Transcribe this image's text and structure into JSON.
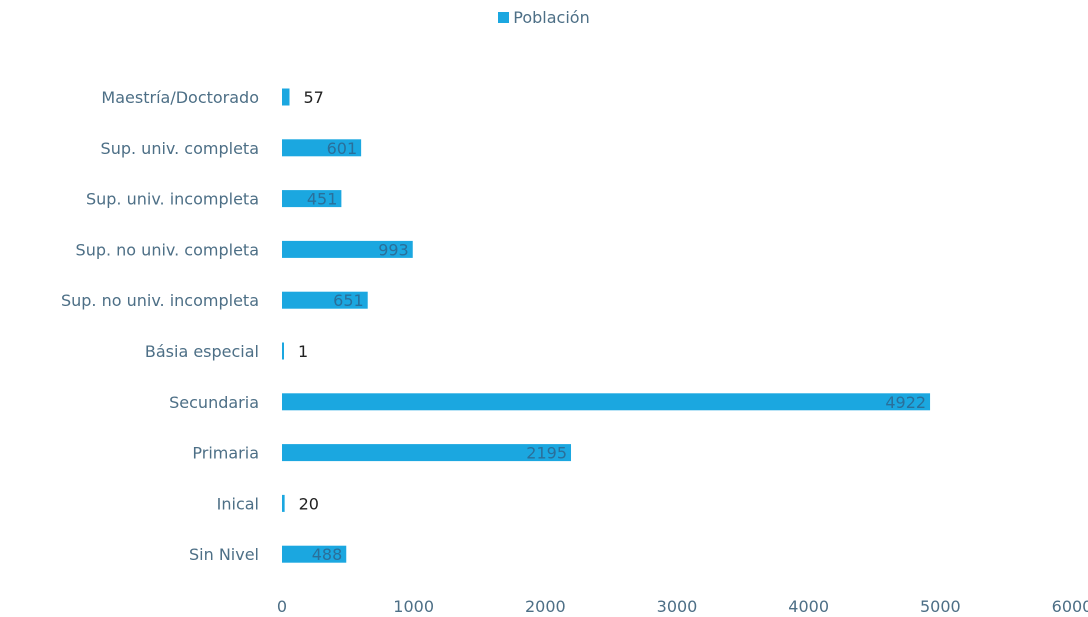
{
  "chart_data": {
    "type": "bar",
    "orientation": "horizontal",
    "title": "",
    "xlabel": "",
    "ylabel": "",
    "categories": [
      "Maestría/Doctorado",
      "Sup. univ. completa",
      "Sup. univ. incompleta",
      "Sup. no univ. completa",
      "Sup. no univ. incompleta",
      "Básia especial",
      "Secundaria",
      "Primaria",
      "Inical",
      "Sin Nivel"
    ],
    "series": [
      {
        "name": "Población",
        "color": "#1ba7e0",
        "values": [
          57,
          601,
          451,
          993,
          651,
          1,
          4922,
          2195,
          20,
          488
        ]
      }
    ],
    "data_labels": [
      "57",
      "601",
      "451",
      "993",
      "651",
      "1",
      "4922",
      "2195",
      "20",
      "488"
    ],
    "xlim": [
      0,
      6000
    ],
    "xticks": [
      "0",
      "1000",
      "2000",
      "3000",
      "4000",
      "5000",
      "6000"
    ],
    "grid": false,
    "legend_position": "top-center"
  }
}
